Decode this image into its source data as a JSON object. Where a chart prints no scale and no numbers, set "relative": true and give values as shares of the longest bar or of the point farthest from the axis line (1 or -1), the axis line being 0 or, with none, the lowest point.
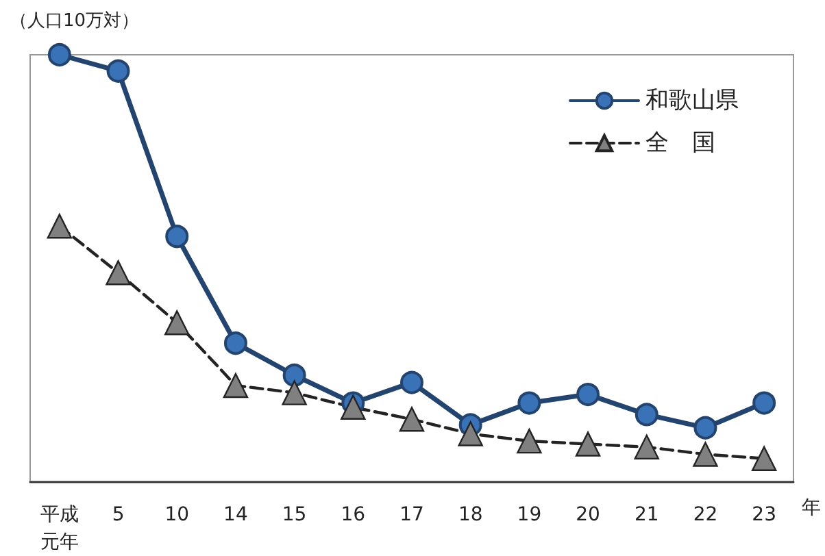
{
  "chart_data": {
    "type": "line",
    "relative": true,
    "ylabel": "（人口10万対）",
    "xlabel": "年",
    "categories": [
      "平成元年",
      "5",
      "10",
      "14",
      "15",
      "16",
      "17",
      "18",
      "19",
      "20",
      "21",
      "22",
      "23"
    ],
    "series": [
      {
        "name": "和歌山県",
        "color": "#3a72b8",
        "marker": "circle",
        "line_style": "solid",
        "values": [
          1,
          0.962,
          0.575,
          0.325,
          0.25,
          0.185,
          0.233,
          0.134,
          0.185,
          0.205,
          0.158,
          0.127,
          0.185
        ]
      },
      {
        "name": "全　国",
        "color": "#808080",
        "marker": "triangle",
        "line_style": "dashed",
        "values": [
          0.599,
          0.49,
          0.373,
          0.226,
          0.209,
          0.175,
          0.147,
          0.113,
          0.096,
          0.089,
          0.082,
          0.065,
          0.055
        ]
      }
    ],
    "legend": "top right",
    "grid": false
  }
}
